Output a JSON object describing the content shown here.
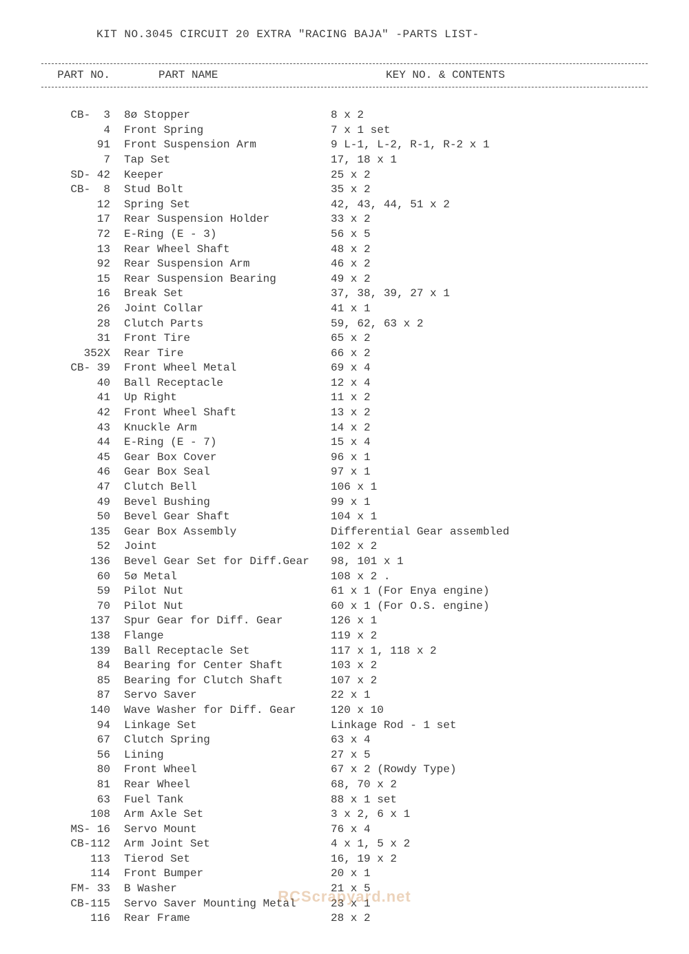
{
  "title": "KIT NO.3045 CIRCUIT 20 EXTRA \"RACING BAJA\" -PARTS LIST-",
  "headers": {
    "partno": "PART NO.",
    "partname": "PART NAME",
    "keyno": "KEY NO. & CONTENTS"
  },
  "colors": {
    "text": "#3a3a3a",
    "background": "#ffffff",
    "divider": "#555555",
    "watermark": "rgba(200,130,60,0.35)"
  },
  "font": {
    "family": "Courier New",
    "size": 16,
    "line_height": 1.35
  },
  "rows": [
    {
      "partno": "CB-  3",
      "partname": "8ø Stopper",
      "keyno": "8 x 2"
    },
    {
      "partno": "4",
      "partname": "Front Spring",
      "keyno": "7 x 1 set"
    },
    {
      "partno": "91",
      "partname": "Front Suspension Arm",
      "keyno": "9 L-1, L-2, R-1, R-2 x 1"
    },
    {
      "partno": "7",
      "partname": "Tap Set",
      "keyno": "17, 18 x 1"
    },
    {
      "partno": "SD- 42",
      "partname": "Keeper",
      "keyno": "25 x 2"
    },
    {
      "partno": "CB-  8",
      "partname": "Stud Bolt",
      "keyno": "35 x 2"
    },
    {
      "partno": "12",
      "partname": "Spring Set",
      "keyno": "42, 43, 44, 51 x 2"
    },
    {
      "partno": "17",
      "partname": "Rear Suspension Holder",
      "keyno": "33 x 2"
    },
    {
      "partno": "72",
      "partname": "E-Ring (E - 3)",
      "keyno": "56 x 5"
    },
    {
      "partno": "13",
      "partname": "Rear Wheel Shaft",
      "keyno": "48 x 2"
    },
    {
      "partno": "92",
      "partname": "Rear Suspension Arm",
      "keyno": "46 x 2"
    },
    {
      "partno": "15",
      "partname": "Rear Suspension Bearing",
      "keyno": "49 x 2"
    },
    {
      "partno": "16",
      "partname": "Break Set",
      "keyno": "37, 38, 39, 27 x 1"
    },
    {
      "partno": "26",
      "partname": "Joint Collar",
      "keyno": "41 x 1"
    },
    {
      "partno": "28",
      "partname": "Clutch Parts",
      "keyno": "59, 62, 63 x 2"
    },
    {
      "partno": "31",
      "partname": "Front Tire",
      "keyno": "65 x 2"
    },
    {
      "partno": "352X",
      "partname": "Rear Tire",
      "keyno": "66 x 2"
    },
    {
      "partno": "CB- 39",
      "partname": "Front Wheel Metal",
      "keyno": "69 x 4"
    },
    {
      "partno": "40",
      "partname": "Ball Receptacle",
      "keyno": "12 x 4"
    },
    {
      "partno": "41",
      "partname": "Up Right",
      "keyno": "11 x 2"
    },
    {
      "partno": "42",
      "partname": "Front Wheel Shaft",
      "keyno": "13 x 2"
    },
    {
      "partno": "43",
      "partname": "Knuckle Arm",
      "keyno": "14 x 2"
    },
    {
      "partno": "44",
      "partname": "E-Ring (E - 7)",
      "keyno": "15 x 4"
    },
    {
      "partno": "45",
      "partname": "Gear Box Cover",
      "keyno": "96 x 1"
    },
    {
      "partno": "46",
      "partname": "Gear Box Seal",
      "keyno": "97 x 1"
    },
    {
      "partno": "47",
      "partname": "Clutch Bell",
      "keyno": "106 x 1"
    },
    {
      "partno": "49",
      "partname": "Bevel Bushing",
      "keyno": "99 x 1"
    },
    {
      "partno": "50",
      "partname": "Bevel Gear Shaft",
      "keyno": "104 x 1"
    },
    {
      "partno": "135",
      "partname": "Gear Box Assembly",
      "keyno": "Differential Gear assembled"
    },
    {
      "partno": "52",
      "partname": "Joint",
      "keyno": "102 x 2"
    },
    {
      "partno": "136",
      "partname": "Bevel Gear Set for Diff.Gear",
      "keyno": "98, 101 x 1"
    },
    {
      "partno": "60",
      "partname": "5ø Metal",
      "keyno": "108 x 2 ."
    },
    {
      "partno": "59",
      "partname": "Pilot Nut",
      "keyno": "61 x 1 (For Enya engine)"
    },
    {
      "partno": "70",
      "partname": "Pilot Nut",
      "keyno": "60 x 1 (For O.S. engine)"
    },
    {
      "partno": "137",
      "partname": "Spur Gear for Diff. Gear",
      "keyno": "126 x 1"
    },
    {
      "partno": "138",
      "partname": "Flange",
      "keyno": "119 x 2"
    },
    {
      "partno": "139",
      "partname": "Ball Receptacle Set",
      "keyno": "117 x 1, 118 x 2"
    },
    {
      "partno": "84",
      "partname": "Bearing for Center Shaft",
      "keyno": "103 x 2"
    },
    {
      "partno": "85",
      "partname": "Bearing for Clutch Shaft",
      "keyno": "107 x 2"
    },
    {
      "partno": "87",
      "partname": "Servo Saver",
      "keyno": "22 x 1"
    },
    {
      "partno": "140",
      "partname": "Wave Washer for Diff. Gear",
      "keyno": "120 x 10"
    },
    {
      "partno": "94",
      "partname": "Linkage Set",
      "keyno": "Linkage Rod - 1 set"
    },
    {
      "partno": "67",
      "partname": "Clutch Spring",
      "keyno": "63 x 4"
    },
    {
      "partno": "56",
      "partname": "Lining",
      "keyno": "27 x 5"
    },
    {
      "partno": "80",
      "partname": "Front Wheel",
      "keyno": "67 x 2 (Rowdy Type)"
    },
    {
      "partno": "81",
      "partname": "Rear Wheel",
      "keyno": "68, 70 x 2"
    },
    {
      "partno": "63",
      "partname": "Fuel Tank",
      "keyno": "88 x 1 set"
    },
    {
      "partno": "108",
      "partname": "Arm Axle Set",
      "keyno": "3 x 2, 6 x 1"
    },
    {
      "partno": "MS- 16",
      "partname": "Servo Mount",
      "keyno": "76 x 4"
    },
    {
      "partno": "CB-112",
      "partname": "Arm Joint Set",
      "keyno": "4 x 1, 5 x 2"
    },
    {
      "partno": "113",
      "partname": "Tierod Set",
      "keyno": "16, 19 x 2"
    },
    {
      "partno": "114",
      "partname": "Front Bumper",
      "keyno": "20 x 1"
    },
    {
      "partno": "FM- 33",
      "partname": "B Washer",
      "keyno": "21 x 5"
    },
    {
      "partno": "CB-115",
      "partname": "Servo Saver Mounting Metal",
      "keyno": "23 x 1"
    },
    {
      "partno": "116",
      "partname": "Rear Frame",
      "keyno": "28 x 2"
    }
  ],
  "watermark": "RCScrapyard.net"
}
